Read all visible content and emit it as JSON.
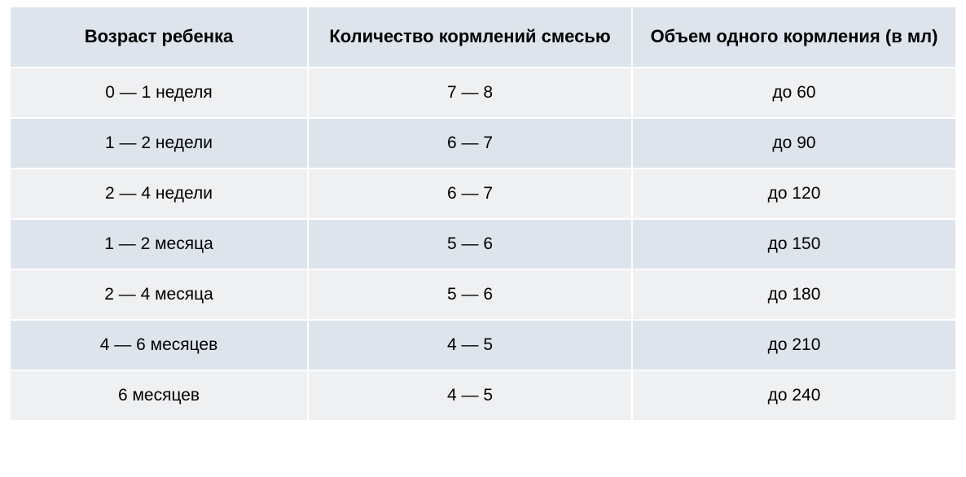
{
  "table": {
    "type": "table",
    "header_background": "#dde4ec",
    "row_odd_background": "#eff0f2",
    "row_even_background": "#dde4ec",
    "border_color": "#ffffff",
    "text_color": "#000000",
    "header_fontsize": 22,
    "body_fontsize": 21,
    "column_widths_pct": [
      31.5,
      34.25,
      34.25
    ],
    "columns": [
      "Возраст ребенка",
      "Количество кормлений смесью",
      "Объем одного кормления (в мл)"
    ],
    "rows": [
      {
        "age": "0 — 1 неделя",
        "feedings": "7 — 8",
        "volume": "до 60"
      },
      {
        "age": "1 — 2 недели",
        "feedings": "6 — 7",
        "volume": "до 90"
      },
      {
        "age": "2 — 4 недели",
        "feedings": "6 — 7",
        "volume": "до 120"
      },
      {
        "age": "1 — 2 месяца",
        "feedings": "5 — 6",
        "volume": "до 150"
      },
      {
        "age": "2 — 4 месяца",
        "feedings": "5 — 6",
        "volume": "до 180"
      },
      {
        "age": "4 — 6 месяцев",
        "feedings": "4 — 5",
        "volume": "до 210"
      },
      {
        "age": "6 месяцев",
        "feedings": "4 — 5",
        "volume": "до 240"
      }
    ]
  }
}
